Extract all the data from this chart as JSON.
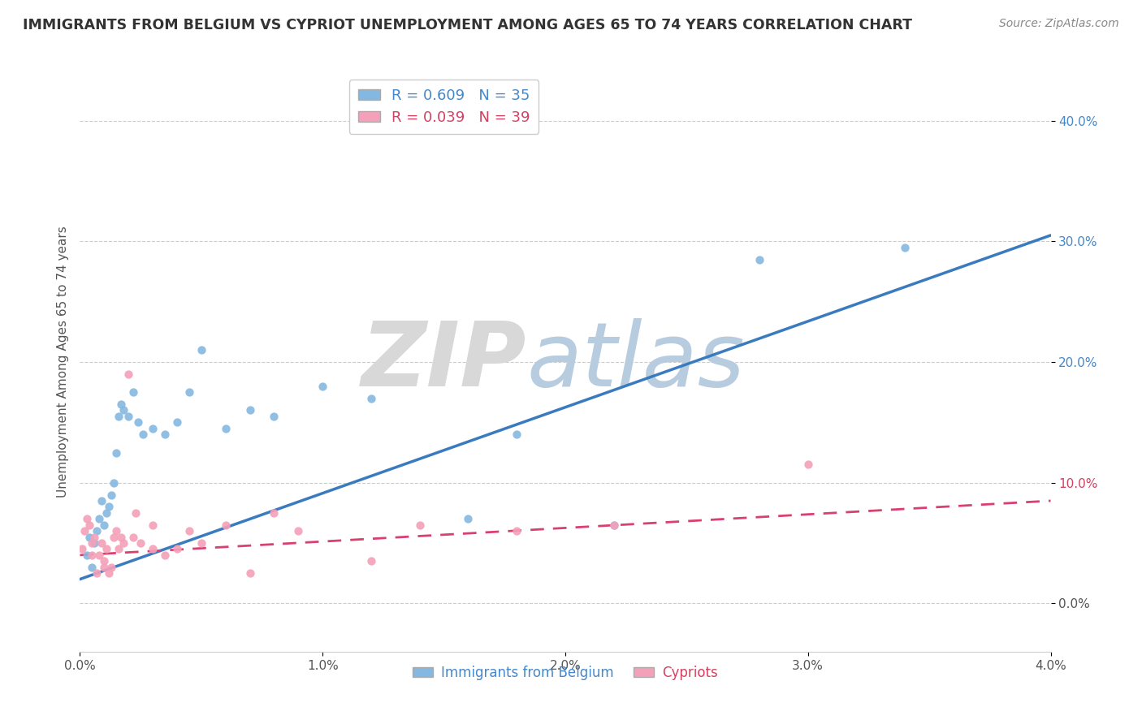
{
  "title": "IMMIGRANTS FROM BELGIUM VS CYPRIOT UNEMPLOYMENT AMONG AGES 65 TO 74 YEARS CORRELATION CHART",
  "source": "Source: ZipAtlas.com",
  "ylabel": "Unemployment Among Ages 65 to 74 years",
  "xlabel_ticks": [
    "0.0%",
    "1.0%",
    "2.0%",
    "3.0%",
    "4.0%"
  ],
  "xlabel_vals": [
    0.0,
    0.01,
    0.02,
    0.03,
    0.04
  ],
  "ylabel_ticks_right": [
    0.0,
    0.1,
    0.2,
    0.3,
    0.4
  ],
  "ylabel_labels_right": [
    "0.0%",
    "10.0%",
    "20.0%",
    "30.0%",
    "40.0%"
  ],
  "ylabel_colors_right": [
    "#555555",
    "#d44060",
    "#4488cc",
    "#4488cc",
    "#4488cc"
  ],
  "legend_entry1": "R = 0.609   N = 35",
  "legend_entry2": "R = 0.039   N = 39",
  "legend_label1": "Immigrants from Belgium",
  "legend_label2": "Cypriots",
  "color_blue": "#85b8e0",
  "color_pink": "#f4a0b8",
  "color_blue_line": "#3a7bbf",
  "color_pink_line": "#d84070",
  "blue_scatter_x": [
    0.0003,
    0.0004,
    0.0005,
    0.0006,
    0.0007,
    0.0008,
    0.0009,
    0.001,
    0.0011,
    0.0012,
    0.0013,
    0.0014,
    0.0015,
    0.0016,
    0.0017,
    0.0018,
    0.002,
    0.0022,
    0.0024,
    0.0026,
    0.003,
    0.0035,
    0.004,
    0.0045,
    0.005,
    0.006,
    0.007,
    0.008,
    0.01,
    0.012,
    0.016,
    0.018,
    0.022,
    0.028,
    0.034
  ],
  "blue_scatter_y": [
    0.04,
    0.055,
    0.03,
    0.05,
    0.06,
    0.07,
    0.085,
    0.065,
    0.075,
    0.08,
    0.09,
    0.1,
    0.125,
    0.155,
    0.165,
    0.16,
    0.155,
    0.175,
    0.15,
    0.14,
    0.145,
    0.14,
    0.15,
    0.175,
    0.21,
    0.145,
    0.16,
    0.155,
    0.18,
    0.17,
    0.07,
    0.14,
    0.065,
    0.285,
    0.295
  ],
  "pink_scatter_x": [
    0.0001,
    0.0002,
    0.0003,
    0.0004,
    0.0005,
    0.0005,
    0.0006,
    0.0007,
    0.0008,
    0.0009,
    0.001,
    0.001,
    0.0011,
    0.0012,
    0.0013,
    0.0014,
    0.0015,
    0.0016,
    0.0017,
    0.0018,
    0.002,
    0.0022,
    0.0023,
    0.0025,
    0.003,
    0.003,
    0.0035,
    0.004,
    0.0045,
    0.005,
    0.006,
    0.007,
    0.008,
    0.009,
    0.012,
    0.014,
    0.018,
    0.022,
    0.03
  ],
  "pink_scatter_y": [
    0.045,
    0.06,
    0.07,
    0.065,
    0.05,
    0.04,
    0.055,
    0.025,
    0.04,
    0.05,
    0.03,
    0.035,
    0.045,
    0.025,
    0.03,
    0.055,
    0.06,
    0.045,
    0.055,
    0.05,
    0.19,
    0.055,
    0.075,
    0.05,
    0.045,
    0.065,
    0.04,
    0.045,
    0.06,
    0.05,
    0.065,
    0.025,
    0.075,
    0.06,
    0.035,
    0.065,
    0.06,
    0.065,
    0.115
  ],
  "blue_line_x": [
    0.0,
    0.04
  ],
  "blue_line_y": [
    0.02,
    0.305
  ],
  "pink_line_x": [
    0.0,
    0.04
  ],
  "pink_line_y": [
    0.04,
    0.085
  ],
  "xlim": [
    0.0,
    0.04
  ],
  "ylim": [
    -0.04,
    0.44
  ]
}
